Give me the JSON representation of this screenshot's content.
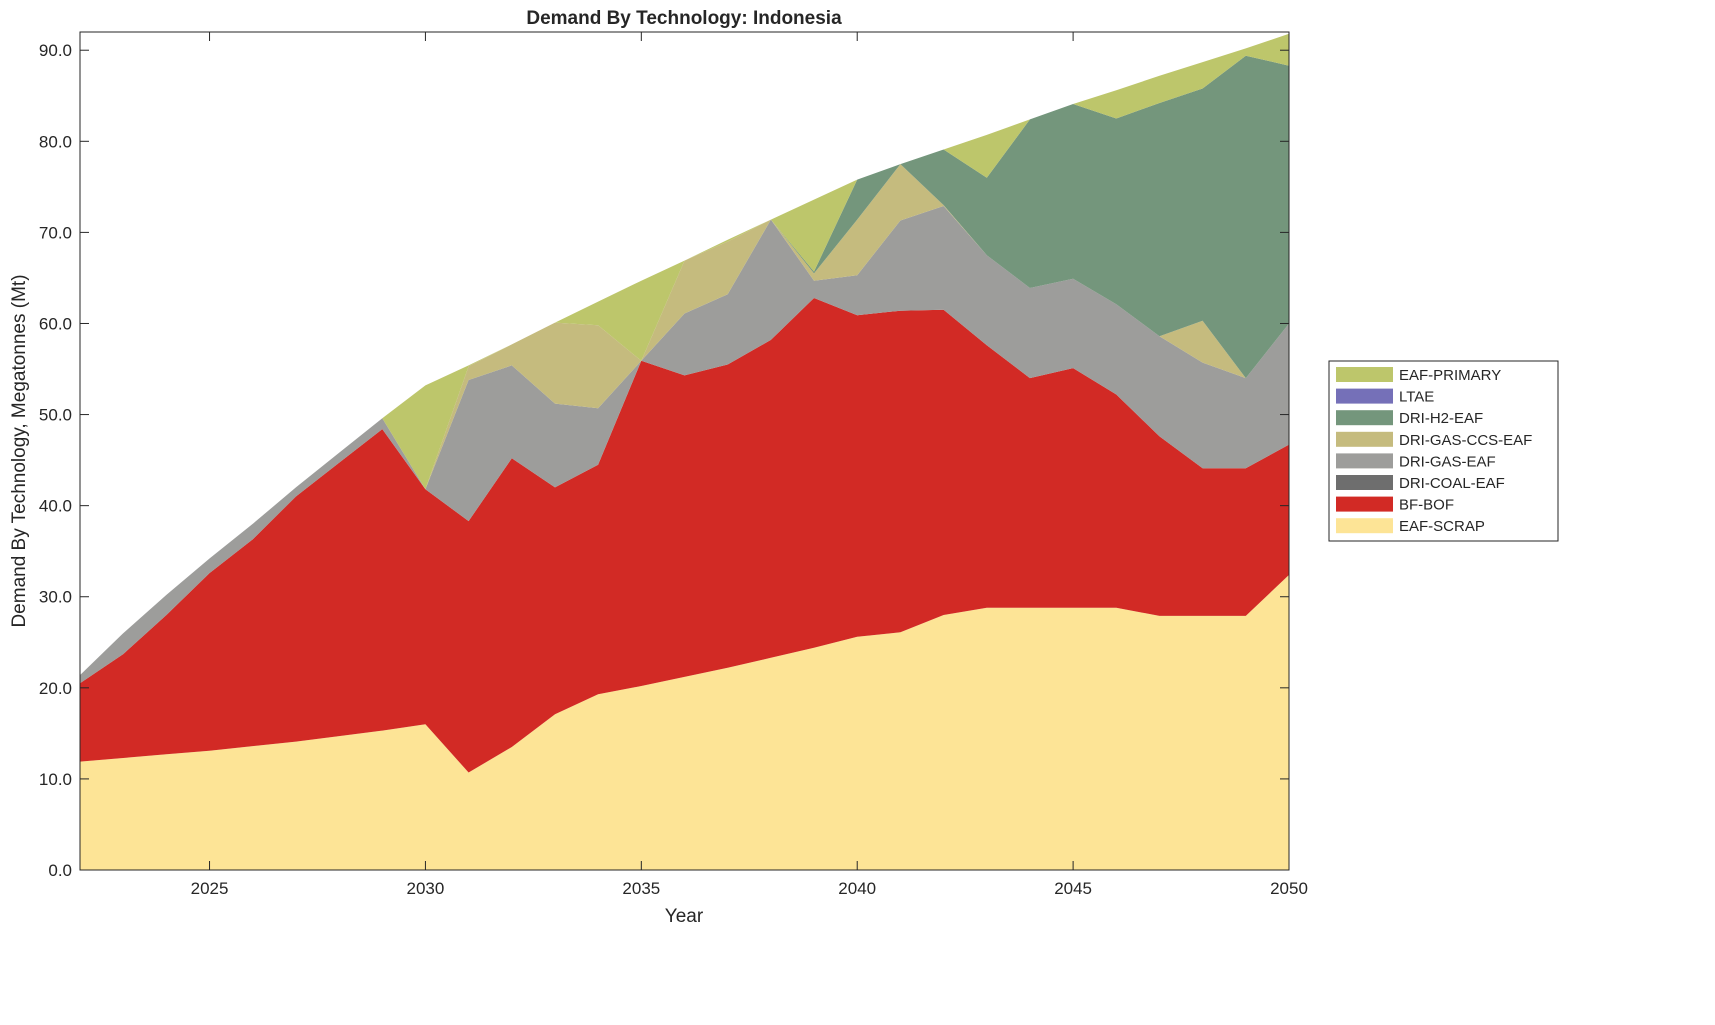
{
  "chart_data": {
    "type": "area",
    "stacked": true,
    "title": "Demand By Technology: Indonesia",
    "xlabel": "Year",
    "ylabel": "Demand By Technology, Megatonnes (Mt)",
    "xlim": [
      2022,
      2050
    ],
    "ylim": [
      0,
      92
    ],
    "yticks": [
      0,
      10,
      20,
      30,
      40,
      50,
      60,
      70,
      80,
      90
    ],
    "ytick_labels": [
      "0.0",
      "10.0",
      "20.0",
      "30.0",
      "40.0",
      "50.0",
      "60.0",
      "70.0",
      "80.0",
      "90.0"
    ],
    "xticks": [
      2025,
      2030,
      2035,
      2040,
      2045,
      2050
    ],
    "xtick_labels": [
      "2025",
      "2030",
      "2035",
      "2040",
      "2045",
      "2050"
    ],
    "legend_position": "right",
    "x": [
      2022,
      2023,
      2024,
      2025,
      2026,
      2027,
      2028,
      2029,
      2030,
      2031,
      2032,
      2033,
      2034,
      2035,
      2036,
      2037,
      2038,
      2039,
      2040,
      2041,
      2042,
      2043,
      2044,
      2045,
      2046,
      2047,
      2048,
      2049,
      2050
    ],
    "series": [
      {
        "name": "EAF-SCRAP",
        "color": "#fde496",
        "values": [
          11.9,
          12.3,
          12.7,
          13.1,
          13.6,
          14.1,
          14.7,
          15.3,
          16.0,
          10.7,
          13.5,
          17.1,
          19.3,
          20.2,
          21.2,
          22.2,
          23.3,
          24.4,
          25.6,
          26.1,
          28.0,
          28.8,
          28.8,
          28.8,
          28.8,
          27.9,
          27.9,
          27.9,
          32.4
        ]
      },
      {
        "name": "BF-BOF",
        "color": "#d22a25",
        "values": [
          8.6,
          11.4,
          15.3,
          19.5,
          22.7,
          26.9,
          30.0,
          33.1,
          25.8,
          27.6,
          31.7,
          24.9,
          25.2,
          35.7,
          33.1,
          33.3,
          34.9,
          38.4,
          35.3,
          35.3,
          33.5,
          28.8,
          25.2,
          26.3,
          23.4,
          19.7,
          16.2,
          16.2,
          14.3
        ]
      },
      {
        "name": "DRI-COAL-EAF",
        "color": "#6e6e6e",
        "values": [
          0,
          0,
          0,
          0,
          0,
          0,
          0,
          0,
          0,
          0,
          0,
          0,
          0,
          0,
          0,
          0,
          0,
          0,
          0,
          0,
          0,
          0,
          0,
          0,
          0,
          0,
          0,
          0,
          0
        ]
      },
      {
        "name": "DRI-GAS-EAF",
        "color": "#9d9d9b",
        "values": [
          0.9,
          2.3,
          2.2,
          1.6,
          1.7,
          1.0,
          1.1,
          1.2,
          0,
          15.5,
          10.2,
          9.2,
          6.2,
          0,
          6.8,
          7.7,
          13.2,
          1.9,
          4.4,
          9.9,
          11.4,
          9.9,
          9.9,
          9.8,
          9.9,
          11.0,
          11.6,
          9.9,
          13.3
        ]
      },
      {
        "name": "DRI-GAS-CCS-EAF",
        "color": "#c5bb7e",
        "values": [
          0,
          0,
          0,
          0,
          0,
          0,
          0,
          0,
          0,
          1.5,
          2.3,
          8.9,
          9.1,
          0,
          5.8,
          5.8,
          0,
          0.8,
          6.1,
          6.2,
          0.1,
          0,
          0,
          0,
          0,
          0,
          4.6,
          0,
          0
        ]
      },
      {
        "name": "DRI-H2-EAF",
        "color": "#74967c",
        "values": [
          0,
          0,
          0,
          0,
          0,
          0,
          0,
          0,
          0,
          0,
          0,
          0,
          0,
          0,
          0,
          0,
          0,
          0.2,
          4.4,
          0,
          6.1,
          8.5,
          18.5,
          19.2,
          20.4,
          25.6,
          25.5,
          35.4,
          28.3
        ]
      },
      {
        "name": "LTAE",
        "color": "#7570b8",
        "values": [
          0,
          0,
          0,
          0,
          0,
          0,
          0,
          0,
          0,
          0,
          0,
          0,
          0,
          0,
          0,
          0,
          0,
          0,
          0,
          0,
          0,
          0,
          0,
          0,
          0,
          0,
          0,
          0,
          0
        ]
      },
      {
        "name": "EAF-PRIMARY",
        "color": "#bdc66b",
        "values": [
          0,
          0,
          0,
          0,
          0,
          0,
          0,
          0,
          11.4,
          0.1,
          0,
          0,
          2.6,
          8.8,
          0,
          0.2,
          0,
          7.9,
          0,
          0,
          0,
          4.7,
          0,
          0,
          3.1,
          3.0,
          2.9,
          0.8,
          3.5
        ]
      }
    ]
  }
}
